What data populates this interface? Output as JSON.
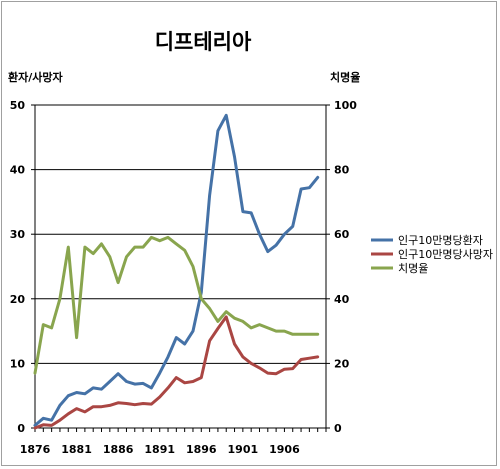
{
  "chart_data": {
    "type": "line",
    "title": "디프테리아",
    "ylabel": "환자/사망자",
    "y2label": "치명율",
    "ylim": [
      0,
      50
    ],
    "y2lim": [
      0,
      100
    ],
    "yticks": [
      0,
      10,
      20,
      30,
      40,
      50
    ],
    "y2ticks": [
      0,
      20,
      40,
      60,
      80,
      100
    ],
    "xlim": [
      1876,
      1911
    ],
    "xtick_labels": [
      "1876",
      "1881",
      "1886",
      "1891",
      "1896",
      "1901",
      "1906"
    ],
    "grid": "horizontal",
    "legend_position": "right",
    "x": [
      1876,
      1877,
      1878,
      1879,
      1880,
      1881,
      1882,
      1883,
      1884,
      1885,
      1886,
      1887,
      1888,
      1889,
      1890,
      1891,
      1892,
      1893,
      1894,
      1895,
      1896,
      1897,
      1898,
      1899,
      1900,
      1901,
      1902,
      1903,
      1904,
      1905,
      1906,
      1907,
      1908,
      1909,
      1910
    ],
    "series": [
      {
        "name": "인구10만명당환자",
        "axis": "left",
        "color": "#4572a7",
        "values": [
          0.4,
          1.5,
          1.2,
          3.5,
          5.0,
          5.5,
          5.3,
          6.2,
          6.0,
          7.2,
          8.4,
          7.2,
          6.8,
          6.9,
          6.2,
          8.5,
          11.0,
          14.0,
          13.0,
          15.0,
          21.0,
          36.0,
          46.0,
          48.4,
          42.0,
          33.5,
          33.3,
          30.0,
          27.3,
          28.3,
          30.0,
          31.2,
          37.0,
          37.2,
          38.8
        ]
      },
      {
        "name": "인구10만명당사망자",
        "axis": "left",
        "color": "#aa4643",
        "values": [
          0.0,
          0.5,
          0.4,
          1.2,
          2.2,
          3.0,
          2.5,
          3.3,
          3.3,
          3.5,
          3.9,
          3.8,
          3.6,
          3.8,
          3.7,
          4.8,
          6.2,
          7.8,
          7.0,
          7.2,
          7.8,
          13.5,
          15.4,
          17.2,
          13.0,
          11.0,
          10.0,
          9.3,
          8.5,
          8.4,
          9.1,
          9.2,
          10.6,
          10.8,
          11.0
        ]
      },
      {
        "name": "치명율",
        "axis": "right",
        "color": "#89a54e",
        "values": [
          17,
          32,
          31,
          40,
          56,
          28,
          56,
          54,
          57,
          53,
          45,
          53,
          56,
          56,
          59,
          58,
          59,
          57,
          55,
          50,
          40,
          37,
          33,
          36,
          34,
          33,
          31,
          32,
          31,
          30,
          30,
          29,
          29,
          29,
          29
        ]
      }
    ]
  }
}
